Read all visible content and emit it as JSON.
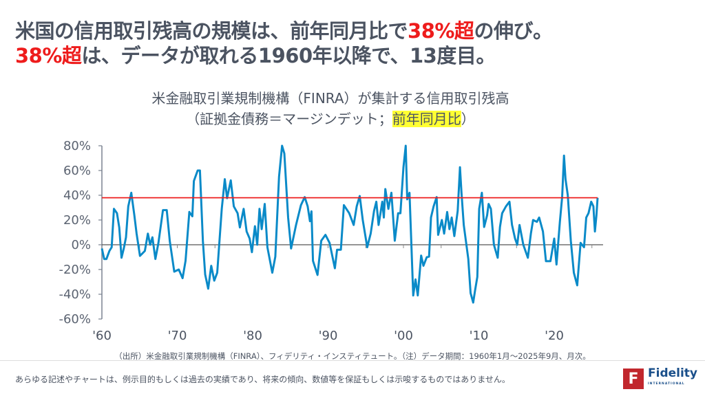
{
  "headline": {
    "line1_pre": "米国の信用取引残高の規模は、前年同月比で",
    "line1_red": "38%超",
    "line1_post": "の伸び。",
    "line2_red": "38%超",
    "line2_post": "は、データが取れる1960年以降で、13度目。"
  },
  "chart_title": {
    "line1": "米金融取引業規制機構（FINRA）が集計する信用取引残高",
    "line2_pre": "（証拠金債務＝マージンデット；",
    "line2_highlight": "前年同月比",
    "line2_post": "）"
  },
  "chart_data": {
    "type": "line",
    "title": "米金融取引業規制機構（FINRA）が集計する信用取引残高（証拠金債務＝マージンデット；前年同月比）",
    "xlabel": "",
    "ylabel": "",
    "ylim": [
      -60,
      80
    ],
    "xlim": [
      1960,
      2025.75
    ],
    "y_ticks": [
      "80%",
      "60%",
      "40%",
      "20%",
      "0%",
      "-20%",
      "-40%",
      "-60%"
    ],
    "y_tick_values": [
      80,
      60,
      40,
      20,
      0,
      -20,
      -40,
      -60
    ],
    "x_ticks": [
      "'60",
      "'70",
      "'80",
      "'90",
      "'00",
      "'10",
      "'20"
    ],
    "x_tick_values": [
      1960,
      1970,
      1980,
      1990,
      2000,
      2010,
      2020
    ],
    "reference_line": {
      "value": 38,
      "color": "#ee1c1c"
    },
    "grid": false,
    "series": [
      {
        "color": "#0a8ac8",
        "points": [
          [
            1960.0,
            -3
          ],
          [
            1960.3,
            -11.5
          ],
          [
            1960.6,
            -11.5
          ],
          [
            1961.0,
            -5
          ],
          [
            1961.3,
            -2
          ],
          [
            1961.6,
            29
          ],
          [
            1962.0,
            25.5
          ],
          [
            1962.3,
            14
          ],
          [
            1962.6,
            -10.5
          ],
          [
            1962.9,
            -3
          ],
          [
            1963.2,
            6
          ],
          [
            1963.5,
            31
          ],
          [
            1963.9,
            42
          ],
          [
            1964.3,
            24
          ],
          [
            1964.6,
            9
          ],
          [
            1965.05,
            -9
          ],
          [
            1965.7,
            -5
          ],
          [
            1966.1,
            9
          ],
          [
            1966.4,
            0
          ],
          [
            1966.7,
            6
          ],
          [
            1967.1,
            -11.5
          ],
          [
            1967.5,
            1.5
          ],
          [
            1968.1,
            28
          ],
          [
            1968.6,
            28
          ],
          [
            1969.0,
            3
          ],
          [
            1969.6,
            -21.7
          ],
          [
            1970.2,
            -20
          ],
          [
            1970.7,
            -27
          ],
          [
            1971.1,
            -13
          ],
          [
            1971.6,
            26.5
          ],
          [
            1972.0,
            23
          ],
          [
            1972.2,
            51.5
          ],
          [
            1972.7,
            60
          ],
          [
            1973.0,
            60
          ],
          [
            1973.4,
            3
          ],
          [
            1973.7,
            -24
          ],
          [
            1974.1,
            -35.5
          ],
          [
            1974.5,
            -17
          ],
          [
            1974.9,
            -29
          ],
          [
            1975.3,
            -22.6
          ],
          [
            1975.9,
            29
          ],
          [
            1976.3,
            53
          ],
          [
            1976.6,
            37.6
          ],
          [
            1977.1,
            52
          ],
          [
            1977.5,
            31
          ],
          [
            1978.0,
            25.5
          ],
          [
            1978.3,
            14
          ],
          [
            1978.8,
            29
          ],
          [
            1979.2,
            10.7
          ],
          [
            1979.6,
            5
          ],
          [
            1979.9,
            -6
          ],
          [
            1980.3,
            15
          ],
          [
            1980.6,
            0
          ],
          [
            1980.9,
            29
          ],
          [
            1981.2,
            12.6
          ],
          [
            1981.6,
            33
          ],
          [
            1981.95,
            -2
          ],
          [
            1982.6,
            -22.6
          ],
          [
            1983.0,
            -9.6
          ],
          [
            1983.5,
            55
          ],
          [
            1983.9,
            80
          ],
          [
            1984.2,
            73.7
          ],
          [
            1984.7,
            22
          ],
          [
            1985.1,
            -3
          ],
          [
            1985.75,
            16
          ],
          [
            1986.4,
            32
          ],
          [
            1986.9,
            38.5
          ],
          [
            1987.3,
            31
          ],
          [
            1987.6,
            19
          ],
          [
            1987.8,
            27
          ],
          [
            1988.0,
            -13
          ],
          [
            1988.6,
            -24.4
          ],
          [
            1989.1,
            3.3
          ],
          [
            1989.65,
            8
          ],
          [
            1990.2,
            1.5
          ],
          [
            1990.9,
            -19
          ],
          [
            1991.2,
            -4
          ],
          [
            1991.7,
            -4
          ],
          [
            1992.1,
            32
          ],
          [
            1992.8,
            25.5
          ],
          [
            1993.4,
            16
          ],
          [
            1993.8,
            31
          ],
          [
            1994.2,
            39.4
          ],
          [
            1994.6,
            20
          ],
          [
            1995.2,
            -2
          ],
          [
            1995.65,
            9
          ],
          [
            1996.1,
            27.4
          ],
          [
            1996.4,
            34.8
          ],
          [
            1996.7,
            16
          ],
          [
            1997.2,
            34.8
          ],
          [
            1997.4,
            22
          ],
          [
            1997.6,
            45
          ],
          [
            1998.0,
            29
          ],
          [
            1998.4,
            42
          ],
          [
            1998.85,
            3.3
          ],
          [
            1999.3,
            25.5
          ],
          [
            1999.6,
            25.5
          ],
          [
            2000.0,
            62.6
          ],
          [
            2000.3,
            80
          ],
          [
            2000.5,
            36.7
          ],
          [
            2000.8,
            42
          ],
          [
            2001.3,
            -41
          ],
          [
            2001.6,
            -28
          ],
          [
            2001.9,
            -41
          ],
          [
            2002.35,
            -8.7
          ],
          [
            2002.65,
            -17
          ],
          [
            2003.1,
            -10
          ],
          [
            2003.4,
            -9.6
          ],
          [
            2003.65,
            22
          ],
          [
            2004.0,
            31
          ],
          [
            2004.4,
            38.5
          ],
          [
            2004.6,
            8
          ],
          [
            2005.1,
            20
          ],
          [
            2005.4,
            9
          ],
          [
            2005.8,
            26.5
          ],
          [
            2006.1,
            12.6
          ],
          [
            2006.4,
            22
          ],
          [
            2006.75,
            7
          ],
          [
            2007.2,
            27.4
          ],
          [
            2007.5,
            62.6
          ],
          [
            2007.7,
            42
          ],
          [
            2008.0,
            16
          ],
          [
            2008.6,
            -11.5
          ],
          [
            2008.9,
            -39
          ],
          [
            2009.25,
            -46.7
          ],
          [
            2009.5,
            -37
          ],
          [
            2009.8,
            -26
          ],
          [
            2010.05,
            29
          ],
          [
            2010.4,
            42
          ],
          [
            2010.7,
            14.4
          ],
          [
            2011.1,
            23.7
          ],
          [
            2011.3,
            33
          ],
          [
            2011.6,
            29
          ],
          [
            2012.0,
            0
          ],
          [
            2012.5,
            -10.5
          ],
          [
            2012.8,
            14.4
          ],
          [
            2013.1,
            25.5
          ],
          [
            2013.6,
            31
          ],
          [
            2014.06,
            34.8
          ],
          [
            2014.4,
            16
          ],
          [
            2014.8,
            5
          ],
          [
            2015.1,
            0
          ],
          [
            2015.4,
            16
          ],
          [
            2015.9,
            0
          ],
          [
            2016.5,
            -10.5
          ],
          [
            2016.9,
            9
          ],
          [
            2017.2,
            20
          ],
          [
            2017.7,
            18.5
          ],
          [
            2018.0,
            22
          ],
          [
            2018.5,
            10.7
          ],
          [
            2018.9,
            -13.3
          ],
          [
            2019.5,
            -13.3
          ],
          [
            2020.0,
            5
          ],
          [
            2020.3,
            -16
          ],
          [
            2020.75,
            18.5
          ],
          [
            2021.05,
            38.5
          ],
          [
            2021.3,
            72
          ],
          [
            2021.5,
            53
          ],
          [
            2021.8,
            40
          ],
          [
            2022.2,
            3.3
          ],
          [
            2022.6,
            -22.6
          ],
          [
            2023.05,
            -32.8
          ],
          [
            2023.5,
            1.5
          ],
          [
            2023.95,
            -2
          ],
          [
            2024.25,
            22
          ],
          [
            2024.55,
            25.5
          ],
          [
            2024.9,
            34.8
          ],
          [
            2025.2,
            31
          ],
          [
            2025.4,
            10.7
          ],
          [
            2025.6,
            23.7
          ],
          [
            2025.75,
            38
          ]
        ]
      }
    ]
  },
  "source": "（出所）米金融取引業規制機構（FINRA）、フィデリティ・インスティテュート。（注）データ期間：1960年1月～2025年9月、月次。",
  "disclaimer": "あらゆる記述やチャートは、例示目的もしくは過去の実績であり、将来の傾向、数値等を保証もしくは示唆するものではありません。",
  "logo": {
    "mark": "F",
    "name": "Fidelity",
    "sub": "INTERNATIONAL",
    "color": "#c1272d"
  }
}
